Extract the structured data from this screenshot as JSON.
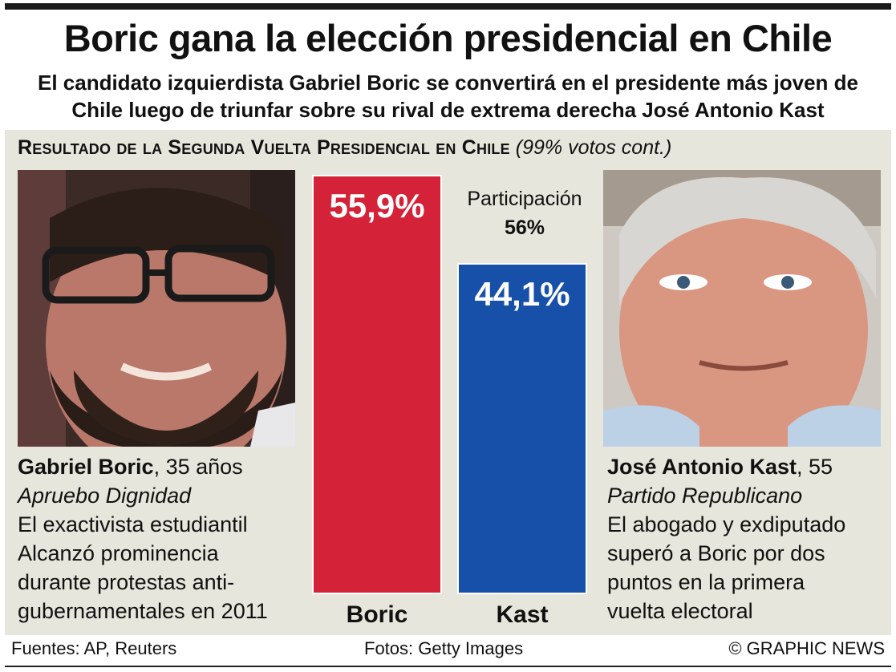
{
  "headline": "Boric gana la elección presidencial en Chile",
  "subhead": "El candidato izquierdista Gabriel Boric se convertirá en el presidente más joven de Chile luego de triunfar sobre su rival de extrema derecha José Antonio Kast",
  "section_title": "Resultado de la Segunda Vuelta Presidencial en Chile",
  "section_note": "(99% votos cont.)",
  "turnout": {
    "label": "Participación",
    "value": "56%"
  },
  "candidates": {
    "left": {
      "name": "Gabriel Boric",
      "age": ", 35 años",
      "party": "Apruebo Dignidad",
      "bio": [
        "El exactivista estudiantil",
        "Alcanzó prominencia",
        "durante protestas anti-",
        "gubernamentales en 2011"
      ]
    },
    "right": {
      "name": "José Antonio Kast",
      "age": ", 55",
      "party": "Partido Republicano",
      "bio": [
        "El abogado y exdiputado",
        "superó a Boric por dos",
        "puntos en la primera",
        "vuelta electoral"
      ]
    }
  },
  "footer": {
    "sources": "Fuentes: AP, Reuters",
    "photos": "Fotos: Getty Images",
    "credit": "© GRAPHIC NEWS"
  },
  "colors": {
    "boric": "#d42238",
    "kast": "#1750a8",
    "panel": "#e7e6dc"
  },
  "chart_data": {
    "type": "bar",
    "categories": [
      "Boric",
      "Kast"
    ],
    "values": [
      55.9,
      44.1
    ],
    "value_labels": [
      "55,9%",
      "44,1%"
    ],
    "unit": "%",
    "ylim": [
      0,
      55.9
    ],
    "grid": false
  }
}
